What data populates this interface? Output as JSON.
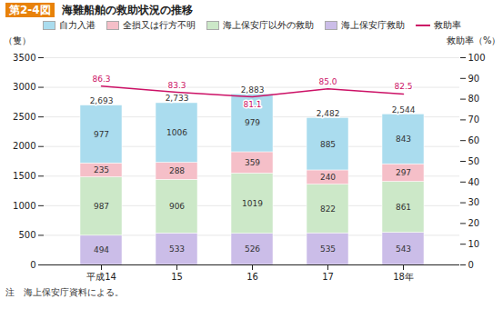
{
  "chart_data": {
    "type": "bar",
    "title": "海難船舶の救助状況の推移",
    "annotations": [
      {
        "text": "第2-4図",
        "color": "#e8820a"
      },
      {
        "text": "注　海上保安庁資料による。"
      }
    ],
    "categories": [
      "平成14",
      "15",
      "16",
      "17",
      "18年"
    ],
    "series": [
      {
        "name": "海上保安庁救助",
        "color": "#cbbde8",
        "values": [
          494,
          533,
          526,
          535,
          543
        ]
      },
      {
        "name": "海上保安庁以外の救助",
        "color": "#cce8c8",
        "values": [
          987,
          906,
          1019,
          822,
          861
        ]
      },
      {
        "name": "全損又は行方不明",
        "color": "#f5bfc8",
        "values": [
          235,
          288,
          359,
          240,
          297
        ]
      },
      {
        "name": "自力入港",
        "color": "#aadcee",
        "values": [
          977,
          1006,
          979,
          885,
          843
        ]
      },
      {
        "name": "救助率",
        "type": "line",
        "axis": "y2",
        "color": "#cc1166",
        "values": [
          86.3,
          83.3,
          81.1,
          85.0,
          82.5
        ],
        "value_labels": [
          "86.3",
          "83.3",
          "81.1",
          "85.0",
          "82.5"
        ]
      }
    ],
    "totals": [
      2693,
      2733,
      2883,
      2482,
      2544
    ],
    "total_labels": [
      "2,693",
      "2,733",
      "2,883",
      "2,482",
      "2,544"
    ],
    "stacked": true,
    "data_labels": true,
    "legend": "top",
    "grid": true,
    "ylabel": "（隻）",
    "y2label": "救助率（%）",
    "ylim": [
      0,
      3500
    ],
    "yticks": [
      0,
      500,
      1000,
      1500,
      2000,
      2500,
      3000,
      3500
    ],
    "y2lim": [
      0,
      100
    ],
    "y2ticks": [
      0,
      10,
      20,
      30,
      40,
      50,
      60,
      70,
      80,
      90,
      100
    ]
  }
}
